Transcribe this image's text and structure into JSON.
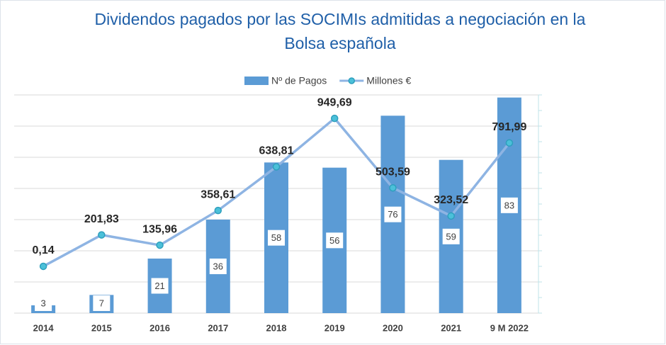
{
  "chart_data": {
    "type": "bar-line",
    "title": "Dividendos pagados por las SOCIMIs admitidas a negociación en la Bolsa española",
    "categories": [
      "2014",
      "2015",
      "2016",
      "2017",
      "2018",
      "2019",
      "2020",
      "2021",
      "9 M 2022"
    ],
    "series": [
      {
        "name": "Nº de Pagos",
        "type": "bar",
        "color": "#5b9bd5",
        "values": [
          3,
          7,
          21,
          36,
          58,
          56,
          76,
          59,
          83
        ]
      },
      {
        "name": "Millones €",
        "type": "line",
        "axis": "y2",
        "color": "#8eb4e3",
        "values": [
          0.14,
          201.83,
          135.96,
          358.61,
          638.81,
          949.69,
          503.59,
          323.52,
          791.99
        ],
        "value_labels": [
          "0,14",
          "201,83",
          "135,96",
          "358,61",
          "638,81",
          "949,69",
          "503,59",
          "323,52",
          "791,99"
        ]
      }
    ],
    "ylim": [
      0,
      84
    ],
    "yticks": [
      0,
      12,
      24,
      36,
      48,
      60,
      72,
      84
    ],
    "y2lim": [
      -300,
      1100
    ],
    "y2ticks": [
      -300,
      -200,
      -100,
      0,
      100,
      200,
      300,
      400,
      500,
      600,
      700,
      800,
      900,
      1000,
      1100
    ],
    "grid": true,
    "legend": "top"
  }
}
